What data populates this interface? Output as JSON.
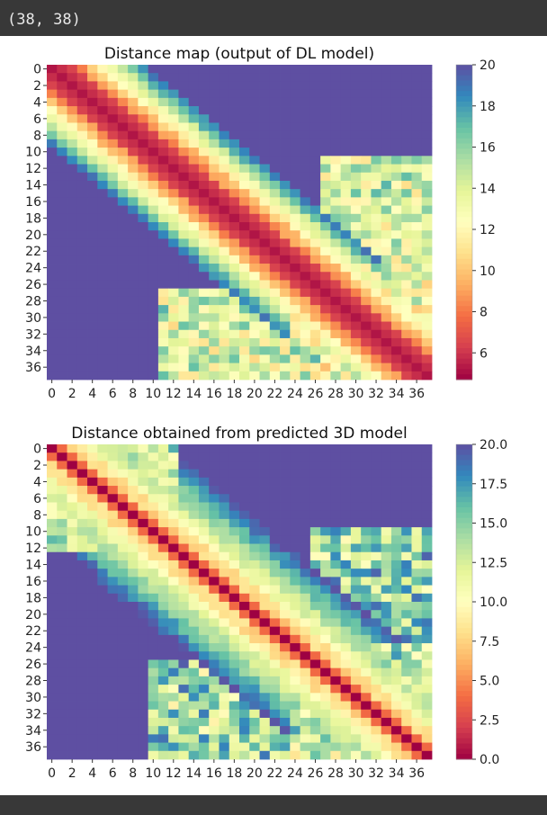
{
  "output_text": "(38, 38)",
  "chart_data": [
    {
      "type": "heatmap",
      "title": "Distance map (output of DL model)",
      "size": 38,
      "colormap": "Spectral",
      "vmin": 4.7,
      "vmax": 20,
      "x_ticks": [
        0,
        2,
        4,
        6,
        8,
        10,
        12,
        14,
        16,
        18,
        20,
        22,
        24,
        26,
        28,
        30,
        32,
        34,
        36
      ],
      "y_ticks": [
        0,
        2,
        4,
        6,
        8,
        10,
        12,
        14,
        16,
        18,
        20,
        22,
        24,
        26,
        28,
        30,
        32,
        34,
        36
      ],
      "colorbar_ticks": [
        6,
        8,
        10,
        12,
        14,
        16,
        18,
        20
      ],
      "colorbar_labels": [
        "6",
        "8",
        "10",
        "12",
        "14",
        "16",
        "18",
        "20"
      ],
      "colors": {
        "background": "#383838",
        "panel": "#ffffff"
      }
    },
    {
      "type": "heatmap",
      "title": "Distance obtained from predicted 3D model",
      "size": 38,
      "colormap": "Spectral",
      "vmin": 0,
      "vmax": 20,
      "x_ticks": [
        0,
        2,
        4,
        6,
        8,
        10,
        12,
        14,
        16,
        18,
        20,
        22,
        24,
        26,
        28,
        30,
        32,
        34,
        36
      ],
      "y_ticks": [
        0,
        2,
        4,
        6,
        8,
        10,
        12,
        14,
        16,
        18,
        20,
        22,
        24,
        26,
        28,
        30,
        32,
        34,
        36
      ],
      "colorbar_ticks": [
        0,
        2.5,
        5,
        7.5,
        10,
        12.5,
        15,
        17.5,
        20
      ],
      "colorbar_labels": [
        "0.0",
        "2.5",
        "5.0",
        "7.5",
        "10.0",
        "12.5",
        "15.0",
        "17.5",
        "20.0"
      ]
    }
  ]
}
